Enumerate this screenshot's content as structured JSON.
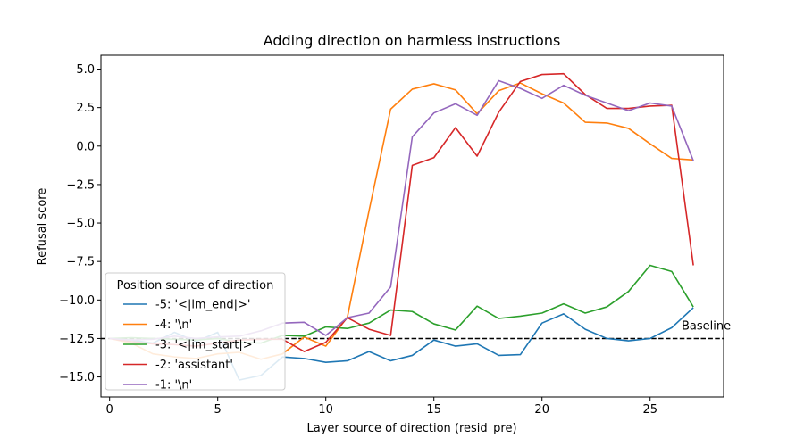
{
  "chart_data": {
    "type": "line",
    "title": "Adding direction on harmless instructions",
    "xlabel": "Layer source of direction (resid_pre)",
    "ylabel": "Refusal score",
    "xlim": [
      -0.4,
      28.4
    ],
    "ylim": [
      -16.3,
      5.9
    ],
    "x_ticks": [
      0,
      5,
      10,
      15,
      20,
      25
    ],
    "y_ticks": [
      5.0,
      2.5,
      0.0,
      -2.5,
      -5.0,
      -7.5,
      -10.0,
      -12.5,
      -15.0
    ],
    "y_tick_labels": [
      "5.0",
      "2.5",
      "0.0",
      "−2.5",
      "−5.0",
      "−7.5",
      "−10.0",
      "−12.5",
      "−15.0"
    ],
    "grid": false,
    "legend": {
      "title": "Position source of direction",
      "placement": "lower-left"
    },
    "baseline": {
      "value": -12.5,
      "label": "Baseline",
      "style": "dashed",
      "color": "#000000"
    },
    "x": [
      0,
      1,
      2,
      3,
      4,
      5,
      6,
      7,
      8,
      9,
      10,
      11,
      12,
      13,
      14,
      15,
      16,
      17,
      18,
      19,
      20,
      21,
      22,
      23,
      24,
      25,
      26,
      27
    ],
    "series": [
      {
        "name": "-5: '<|im_end|>'",
        "color": "#1f77b4",
        "values": [
          -12.5,
          -12.6,
          -12.8,
          -12.1,
          -12.7,
          -12.1,
          -15.2,
          -14.9,
          -13.7,
          -13.8,
          -14.05,
          -13.95,
          -13.35,
          -13.95,
          -13.6,
          -12.6,
          -13.0,
          -12.85,
          -13.6,
          -13.55,
          -11.5,
          -10.9,
          -11.9,
          -12.5,
          -12.65,
          -12.5,
          -11.8,
          -10.5
        ]
      },
      {
        "name": "-4: '\\n'",
        "color": "#ff7f0e",
        "values": [
          -12.5,
          -12.8,
          -13.5,
          -13.7,
          -13.8,
          -13.5,
          -13.4,
          -13.85,
          -13.5,
          -12.4,
          -13.0,
          -11.1,
          -4.2,
          2.4,
          3.7,
          4.05,
          3.65,
          2.1,
          3.6,
          4.1,
          3.4,
          2.8,
          1.55,
          1.5,
          1.15,
          0.15,
          -0.8,
          -0.9
        ]
      },
      {
        "name": "-3: '<|im_start|>'",
        "color": "#2ca02c",
        "values": [
          -12.5,
          -12.45,
          -12.5,
          -12.55,
          -12.6,
          -12.5,
          -12.75,
          -12.8,
          -12.3,
          -12.35,
          -11.75,
          -11.85,
          -11.5,
          -10.65,
          -10.75,
          -11.55,
          -11.95,
          -10.4,
          -11.2,
          -11.05,
          -10.85,
          -10.25,
          -10.85,
          -10.45,
          -9.45,
          -7.75,
          -8.15,
          -10.45
        ]
      },
      {
        "name": "-2: 'assistant'",
        "color": "#d62728",
        "values": [
          -12.5,
          -12.7,
          -12.85,
          -12.9,
          -13.0,
          -12.8,
          -12.6,
          -12.55,
          -12.55,
          -13.35,
          -12.75,
          -11.15,
          -11.9,
          -12.3,
          -1.25,
          -0.75,
          1.2,
          -0.65,
          2.2,
          4.2,
          4.65,
          4.7,
          3.35,
          2.45,
          2.45,
          2.6,
          2.65,
          -7.75
        ]
      },
      {
        "name": "-1: '\\n'",
        "color": "#9467bd",
        "values": [
          -12.5,
          -12.6,
          -12.55,
          -12.35,
          -12.5,
          -12.4,
          -12.35,
          -12.0,
          -11.5,
          -11.45,
          -12.3,
          -11.15,
          -10.85,
          -9.15,
          0.6,
          2.15,
          2.75,
          2.0,
          4.25,
          3.75,
          3.1,
          3.95,
          3.3,
          2.8,
          2.3,
          2.8,
          2.6,
          -0.95
        ]
      }
    ]
  }
}
